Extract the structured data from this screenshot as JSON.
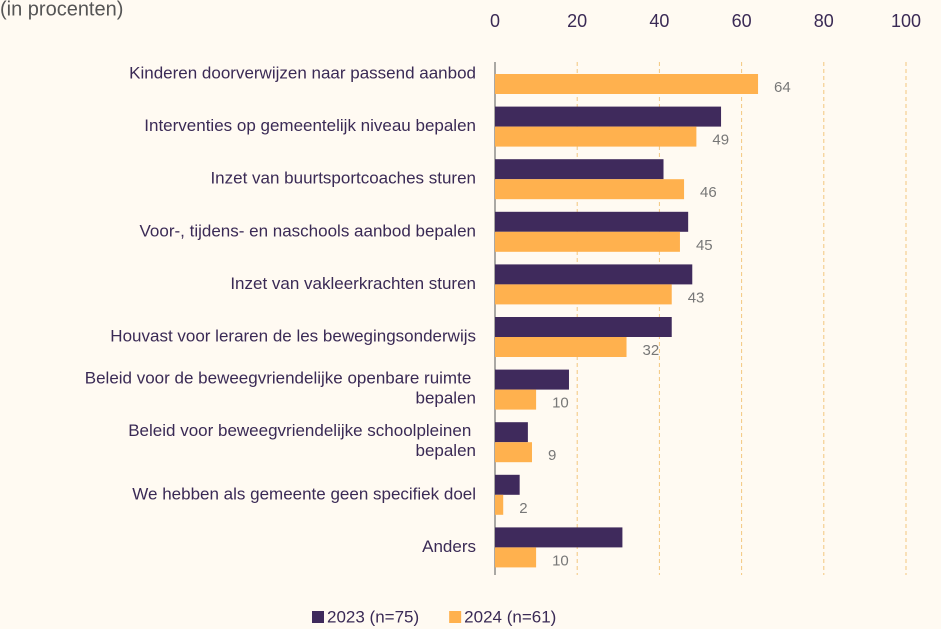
{
  "chart_data": {
    "type": "bar",
    "orientation": "horizontal",
    "title": "(in procenten)",
    "categories": [
      "Kinderen doorverwijzen naar passend aanbod",
      "Interventies op gemeentelijk niveau bepalen",
      "Inzet van buurtsportcoaches sturen",
      "Voor-, tijdens- en naschools aanbod bepalen",
      "Inzet van vakleerkrachten sturen",
      "Houvast voor leraren de les bewegingsonderwijs",
      "Beleid voor de beweegvriendelijke openbare ruimte bepalen",
      "Beleid voor beweegvriendelijke schoolpleinen bepalen",
      "We hebben als gemeente geen specifiek doel",
      "Anders"
    ],
    "series": [
      {
        "name": "2023 (n=75)",
        "color": "#3f2a5c",
        "values": [
          null,
          55,
          41,
          47,
          48,
          43,
          18,
          8,
          6,
          31
        ]
      },
      {
        "name": "2024 (n=61)",
        "color": "#ffb14e",
        "values": [
          64,
          49,
          46,
          45,
          43,
          32,
          10,
          9,
          2,
          10
        ],
        "show_labels": true
      }
    ],
    "xlim": [
      0,
      100
    ],
    "xticks": [
      0,
      20,
      40,
      60,
      80,
      100
    ],
    "grid": true,
    "legend": "bottom"
  }
}
